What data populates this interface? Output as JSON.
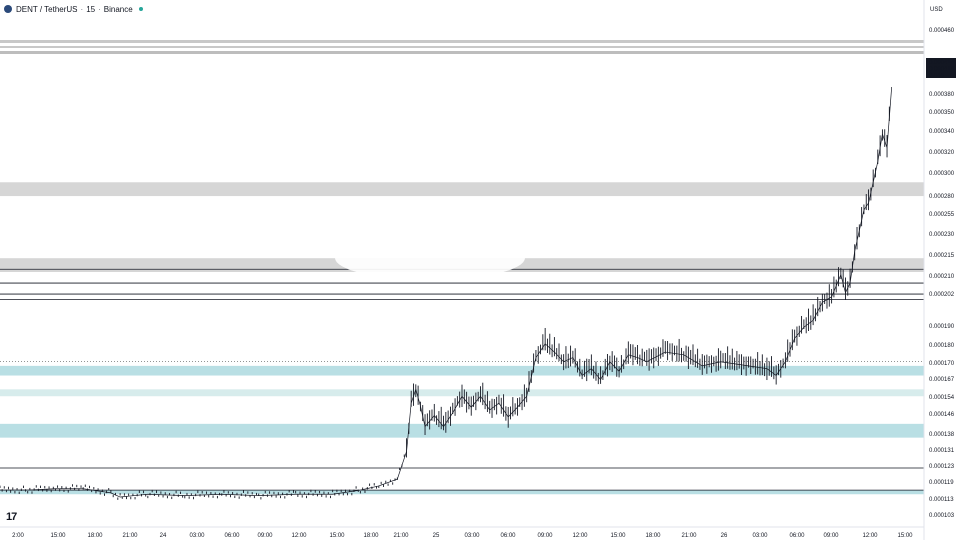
{
  "header": {
    "symbol": "DENT / TetherUS",
    "interval": "15",
    "exchange": "Binance"
  },
  "axis": {
    "currency": "USD"
  },
  "chart_data": {
    "type": "candlestick",
    "title": "",
    "xlabel": "",
    "ylabel": "",
    "ylim": [
      9.6e-05,
      0.000464
    ],
    "y_ticks": [
      "0.000460",
      "0.000380",
      "0.000350",
      "0.000340",
      "0.000320",
      "0.000300",
      "0.000280",
      "0.000255",
      "0.000230",
      "0.000215",
      "0.000210",
      "0.000202",
      "0.000190",
      "0.000180",
      "0.000170",
      "0.000167",
      "0.000154",
      "0.000146",
      "0.000138",
      "0.000131",
      "0.000123",
      "0.000119",
      "0.000113",
      "0.000103"
    ],
    "x_ticks": [
      "2:00",
      "15:00",
      "18:00",
      "21:00",
      "24",
      "03:00",
      "06:00",
      "09:00",
      "12:00",
      "15:00",
      "18:00",
      "21:00",
      "25",
      "03:00",
      "06:00",
      "09:00",
      "12:00",
      "15:00",
      "18:00",
      "21:00",
      "26",
      "03:00",
      "06:00",
      "09:00",
      "12:00",
      "15:00"
    ],
    "current_price_labels": [
      "0.000414",
      "0.000414",
      "07:48"
    ],
    "series": [
      {
        "type": "close-path",
        "x": [
          0,
          0.03,
          0.06,
          0.09,
          0.12,
          0.13,
          0.16,
          0.2,
          0.24,
          0.28,
          0.32,
          0.36,
          0.39,
          0.41,
          0.43,
          0.44,
          0.445,
          0.45,
          0.455,
          0.46,
          0.47,
          0.48,
          0.49,
          0.5,
          0.51,
          0.52,
          0.53,
          0.54,
          0.55,
          0.56,
          0.57,
          0.58,
          0.59,
          0.6,
          0.61,
          0.62,
          0.63,
          0.64,
          0.65,
          0.66,
          0.67,
          0.68,
          0.69,
          0.7,
          0.72,
          0.74,
          0.76,
          0.78,
          0.8,
          0.81,
          0.83,
          0.84,
          0.85,
          0.86,
          0.87,
          0.88,
          0.89,
          0.9,
          0.91,
          0.915,
          0.92,
          0.925,
          0.93,
          0.935,
          0.94,
          0.945,
          0.95,
          0.955,
          0.96,
          0.965
        ],
        "y": [
          0.000122,
          0.000122,
          0.000123,
          0.000123,
          0.00012,
          0.000117,
          0.000119,
          0.000118,
          0.000119,
          0.000118,
          0.000119,
          0.000119,
          0.000122,
          0.000125,
          0.00013,
          0.00015,
          0.000185,
          0.000195,
          0.000183,
          0.000168,
          0.000176,
          0.000168,
          0.000178,
          0.00019,
          0.000182,
          0.00019,
          0.00018,
          0.000185,
          0.000175,
          0.000182,
          0.00019,
          0.000218,
          0.000228,
          0.000222,
          0.000215,
          0.000218,
          0.000205,
          0.00021,
          0.000202,
          0.000215,
          0.000208,
          0.00022,
          0.000218,
          0.000215,
          0.000222,
          0.00022,
          0.000212,
          0.000215,
          0.000213,
          0.000212,
          0.00021,
          0.000205,
          0.000215,
          0.000232,
          0.00024,
          0.000245,
          0.000258,
          0.000262,
          0.000278,
          0.000265,
          0.000272,
          0.000295,
          0.00031,
          0.000325,
          0.00033,
          0.000345,
          0.00036,
          0.00038,
          0.00037,
          0.000414
        ]
      }
    ],
    "horizontal_lines": [
      0.000282,
      0.000272,
      0.000264,
      0.00026,
      0.000138,
      0.000122
    ],
    "zones": [
      {
        "from": 0.000205,
        "to": 0.000212,
        "color": "#b9dfe4"
      },
      {
        "from": 0.00016,
        "to": 0.00017,
        "color": "#b9dfe4"
      },
      {
        "from": 0.000119,
        "to": 0.000122,
        "color": "#b9dfe4"
      },
      {
        "from": 0.00019,
        "to": 0.000195,
        "color": "#d7ecec"
      },
      {
        "from": 0.00028,
        "to": 0.00029,
        "color": "#d6d6d6"
      },
      {
        "from": 0.000335,
        "to": 0.000345,
        "color": "#d6d6d6"
      }
    ],
    "grid": false,
    "legend": "none"
  }
}
